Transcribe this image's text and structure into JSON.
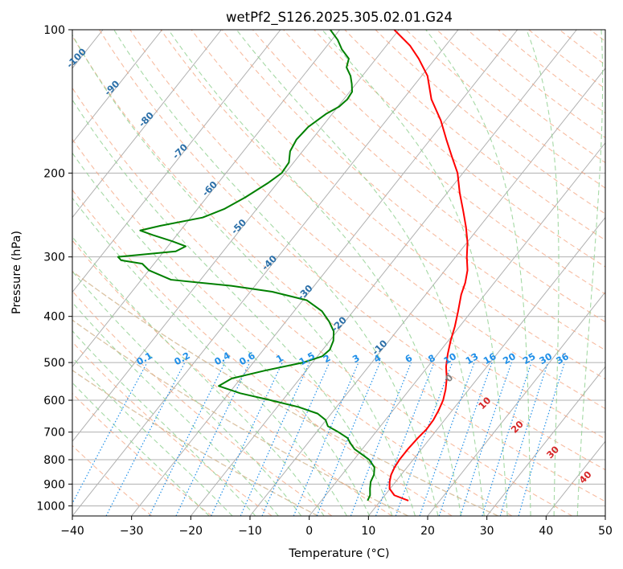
{
  "chart_data": {
    "type": "line",
    "title": "wetPf2_S126.2025.305.02.01.G24",
    "xlabel": "Temperature (°C)",
    "ylabel": "Pressure (hPa)",
    "xlim": [
      -40,
      50
    ],
    "ylim": [
      1050,
      100
    ],
    "y_scale": "log",
    "grid": true,
    "x_ticks": [
      "−40",
      "−30",
      "−20",
      "−10",
      "0",
      "10",
      "20",
      "30",
      "40",
      "50"
    ],
    "y_ticks": [
      "100",
      "200",
      "300",
      "400",
      "500",
      "600",
      "700",
      "800",
      "900",
      "1000"
    ],
    "x_tick_values": [
      -40,
      -30,
      -20,
      -10,
      0,
      10,
      20,
      30,
      40,
      50
    ],
    "y_tick_values": [
      100,
      200,
      300,
      400,
      500,
      600,
      700,
      800,
      900,
      1000
    ],
    "series": [
      {
        "color": "#ff0000",
        "points": [
          [
            975,
            14.7
          ],
          [
            950,
            11.6
          ],
          [
            920,
            9.9
          ],
          [
            890,
            9.0
          ],
          [
            860,
            8.3
          ],
          [
            830,
            7.9
          ],
          [
            800,
            7.7
          ],
          [
            760,
            7.7
          ],
          [
            720,
            7.9
          ],
          [
            690,
            8.2
          ],
          [
            660,
            8.1
          ],
          [
            630,
            7.7
          ],
          [
            600,
            7.1
          ],
          [
            570,
            6.1
          ],
          [
            540,
            4.8
          ],
          [
            510,
            3.1
          ],
          [
            480,
            1.7
          ],
          [
            450,
            0.4
          ],
          [
            420,
            -0.8
          ],
          [
            390,
            -2.3
          ],
          [
            360,
            -4.0
          ],
          [
            340,
            -4.9
          ],
          [
            320,
            -6.2
          ],
          [
            300,
            -8.1
          ],
          [
            280,
            -9.9
          ],
          [
            260,
            -12.2
          ],
          [
            240,
            -14.9
          ],
          [
            220,
            -17.9
          ],
          [
            200,
            -20.9
          ],
          [
            185,
            -24.0
          ],
          [
            170,
            -27.3
          ],
          [
            155,
            -30.8
          ],
          [
            140,
            -35.2
          ],
          [
            125,
            -39.0
          ],
          [
            115,
            -42.8
          ],
          [
            108,
            -46.0
          ],
          [
            100,
            -50.8
          ]
        ]
      },
      {
        "color": "#008000",
        "points": [
          [
            975,
            7.8
          ],
          [
            950,
            7.5
          ],
          [
            920,
            6.6
          ],
          [
            890,
            5.8
          ],
          [
            860,
            5.4
          ],
          [
            830,
            4.5
          ],
          [
            800,
            2.6
          ],
          [
            780,
            0.7
          ],
          [
            760,
            -1.3
          ],
          [
            740,
            -2.7
          ],
          [
            720,
            -4.0
          ],
          [
            700,
            -6.3
          ],
          [
            680,
            -8.9
          ],
          [
            660,
            -10.1
          ],
          [
            640,
            -12.3
          ],
          [
            620,
            -16.4
          ],
          [
            600,
            -22.0
          ],
          [
            580,
            -28.1
          ],
          [
            560,
            -32.7
          ],
          [
            540,
            -31.5
          ],
          [
            520,
            -27.0
          ],
          [
            500,
            -21.6
          ],
          [
            485,
            -19.2
          ],
          [
            470,
            -18.8
          ],
          [
            450,
            -19.4
          ],
          [
            430,
            -20.6
          ],
          [
            410,
            -22.7
          ],
          [
            390,
            -25.3
          ],
          [
            370,
            -29.3
          ],
          [
            355,
            -36.3
          ],
          [
            345,
            -44.0
          ],
          [
            335,
            -55.0
          ],
          [
            320,
            -60.0
          ],
          [
            310,
            -62.0
          ],
          [
            305,
            -66.0
          ],
          [
            300,
            -67.0
          ],
          [
            292,
            -58.0
          ],
          [
            285,
            -57.0
          ],
          [
            278,
            -60.0
          ],
          [
            270,
            -64.0
          ],
          [
            264,
            -66.8
          ],
          [
            258,
            -64.0
          ],
          [
            248,
            -58.0
          ],
          [
            238,
            -55.5
          ],
          [
            225,
            -53.5
          ],
          [
            210,
            -51.6
          ],
          [
            200,
            -50.6
          ],
          [
            190,
            -50.8
          ],
          [
            180,
            -52.1
          ],
          [
            170,
            -52.6
          ],
          [
            160,
            -52.3
          ],
          [
            150,
            -51.0
          ],
          [
            145,
            -49.8
          ],
          [
            140,
            -49.4
          ],
          [
            135,
            -49.6
          ],
          [
            130,
            -50.7
          ],
          [
            125,
            -52.0
          ],
          [
            120,
            -53.8
          ],
          [
            115,
            -54.6
          ],
          [
            110,
            -57.0
          ],
          [
            105,
            -59.0
          ],
          [
            100,
            -61.6
          ]
        ]
      }
    ],
    "isotherm_labels": [
      "-100",
      "-90",
      "-80",
      "-70",
      "-60",
      "-50",
      "-40",
      "-30",
      "-20",
      "-10"
    ],
    "isotherm_label_values": [
      -100,
      -90,
      -80,
      -70,
      -60,
      -50,
      -40,
      -30,
      -20,
      -10
    ],
    "mixing_ratio_labels": [
      "0.1",
      "0.2",
      "0.4",
      "0.6",
      "1",
      "1.5",
      "2",
      "3",
      "4",
      "6",
      "8",
      "10",
      "13",
      "16",
      "20",
      "25",
      "30",
      "36"
    ],
    "mixing_ratio_values": [
      0.1,
      0.2,
      0.4,
      0.6,
      1,
      1.5,
      2,
      3,
      4,
      6,
      8,
      10,
      13,
      16,
      20,
      25,
      30,
      36
    ],
    "moist_adiabat_labels": [
      "0",
      "10",
      "20",
      "30",
      "40"
    ],
    "moist_adiabat_values": [
      0,
      10,
      20,
      30,
      40
    ],
    "colors": {
      "temperature": "#ff0000",
      "dewpoint": "#008000",
      "isotherm": "#2b6fa8",
      "mixing_ratio": "#1f8fe8",
      "dry_adiabat": "#f4a582",
      "moist_adiabat": "#8fcf8f",
      "moist_label": "#d62728",
      "zero_label": "#808080",
      "grid": "#b0b0b0",
      "background_curve": "#d2b48c"
    }
  }
}
